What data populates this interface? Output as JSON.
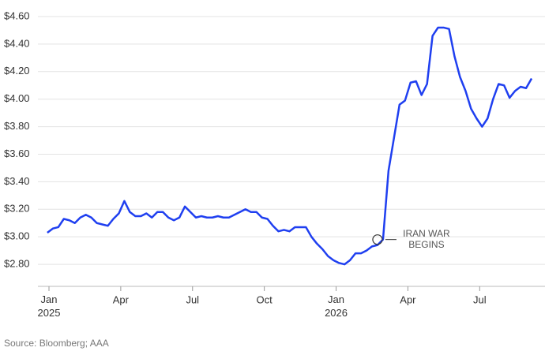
{
  "chart_data": {
    "type": "line",
    "x": [
      -0.07,
      0.16,
      0.39,
      0.62,
      0.85,
      1.08,
      1.31,
      1.54,
      1.77,
      2.0,
      2.23,
      2.46,
      2.69,
      2.92,
      3.15,
      3.38,
      3.61,
      3.84,
      4.07,
      4.3,
      4.53,
      4.76,
      4.99,
      5.22,
      5.45,
      5.68,
      5.91,
      6.14,
      6.37,
      6.6,
      6.83,
      7.06,
      7.29,
      7.52,
      7.75,
      7.98,
      8.21,
      8.44,
      8.67,
      8.9,
      9.13,
      9.36,
      9.59,
      9.82,
      10.05,
      10.28,
      10.51,
      10.74,
      10.97,
      11.2,
      11.43,
      11.66,
      11.89,
      12.12,
      12.35,
      12.58,
      12.81,
      13.04,
      13.27,
      13.5,
      13.73,
      13.96,
      14.19,
      14.42,
      14.65,
      14.88,
      15.11,
      15.34,
      15.57,
      15.8,
      16.03,
      16.26,
      16.49,
      16.72,
      16.95,
      17.18,
      17.41,
      17.64,
      17.87,
      18.1,
      18.33,
      18.56,
      18.79,
      19.02,
      19.25,
      19.48,
      19.71,
      19.94,
      20.17
    ],
    "values": [
      3.03,
      3.06,
      3.07,
      3.13,
      3.12,
      3.1,
      3.14,
      3.16,
      3.14,
      3.1,
      3.09,
      3.08,
      3.13,
      3.17,
      3.26,
      3.18,
      3.15,
      3.15,
      3.17,
      3.14,
      3.18,
      3.18,
      3.14,
      3.12,
      3.14,
      3.22,
      3.18,
      3.14,
      3.15,
      3.14,
      3.14,
      3.15,
      3.14,
      3.14,
      3.16,
      3.18,
      3.2,
      3.18,
      3.18,
      3.14,
      3.13,
      3.08,
      3.04,
      3.05,
      3.04,
      3.07,
      3.07,
      3.07,
      3.0,
      2.95,
      2.91,
      2.86,
      2.83,
      2.81,
      2.8,
      2.83,
      2.88,
      2.88,
      2.9,
      2.93,
      2.94,
      2.98,
      3.48,
      3.72,
      3.96,
      3.99,
      4.12,
      4.13,
      4.03,
      4.11,
      4.46,
      4.52,
      4.52,
      4.51,
      4.31,
      4.16,
      4.06,
      3.93,
      3.86,
      3.8,
      3.86,
      4.0,
      4.11,
      4.1,
      4.01,
      4.06,
      4.09,
      4.08,
      4.15
    ],
    "color": "#1f3ff0",
    "xlim": [
      -0.7,
      20.4
    ],
    "xticks": [
      {
        "value": 0,
        "label": "Jan 2025"
      },
      {
        "value": 3,
        "label": "Apr"
      },
      {
        "value": 6,
        "label": "Jul"
      },
      {
        "value": 9,
        "label": "Oct"
      },
      {
        "value": 12,
        "label": "Jan 2026"
      },
      {
        "value": 15,
        "label": "Apr"
      },
      {
        "value": 18,
        "label": "Jul"
      }
    ],
    "ylim": [
      2.64,
      4.6
    ],
    "yticks": [
      {
        "value": 2.8,
        "label": "$2.80"
      },
      {
        "value": 3.0,
        "label": "$3.00"
      },
      {
        "value": 3.2,
        "label": "$3.20"
      },
      {
        "value": 3.4,
        "label": "$3.40"
      },
      {
        "value": 3.6,
        "label": "$3.60"
      },
      {
        "value": 3.8,
        "label": "$3.80"
      },
      {
        "value": 4.0,
        "label": "$4.00"
      },
      {
        "value": 4.2,
        "label": "$4.20"
      },
      {
        "value": 4.4,
        "label": "$4.40"
      },
      {
        "value": 4.6,
        "label": "$4.60"
      }
    ],
    "grid": true,
    "annotation": {
      "x": 13.73,
      "y": 2.98,
      "text": [
        "IRAN WAR",
        "BEGINS"
      ]
    },
    "source": "Source: Bloomberg; AAA"
  }
}
